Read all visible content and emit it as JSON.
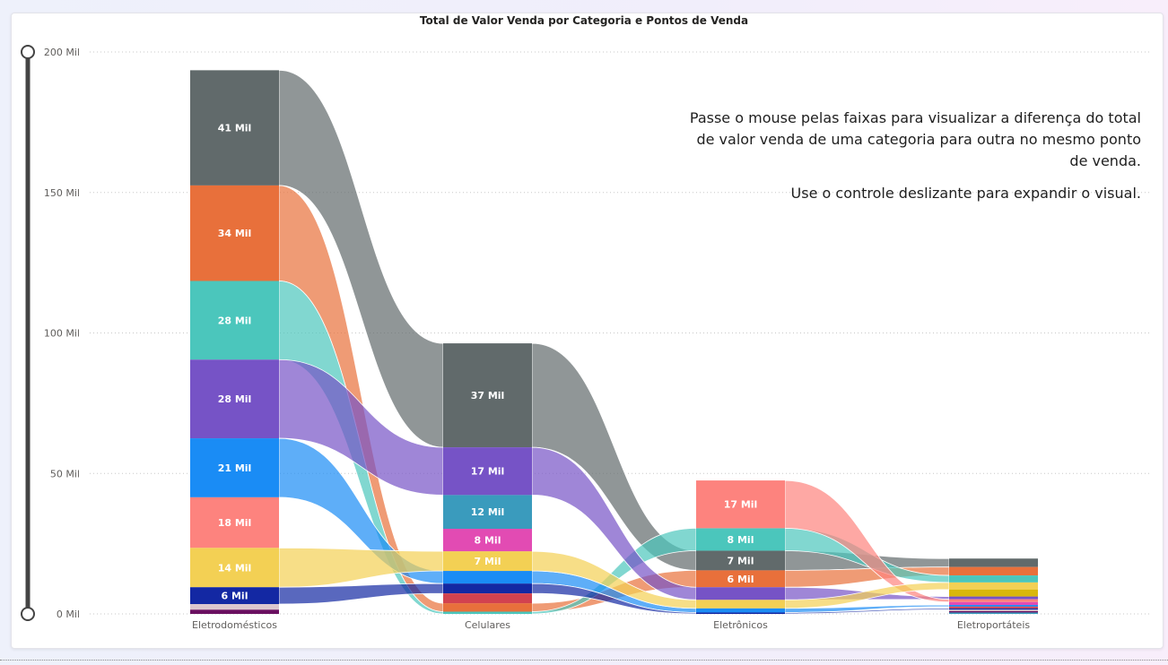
{
  "chart_data": {
    "type": "ribbon",
    "title": "Total de Valor Venda por Categoria e Pontos de Venda",
    "xlabel": "",
    "ylabel": "",
    "ylim": [
      0,
      200
    ],
    "y_ticks": [
      "0 Mil",
      "50 Mil",
      "100 Mil",
      "150 Mil",
      "200 Mil"
    ],
    "grid": true,
    "legend": "none",
    "categories": [
      "Eletrodomésticos",
      "Celulares",
      "Eletrônicos",
      "Eletroportáteis"
    ],
    "series": [
      {
        "color": "#616a6b",
        "values": [
          41,
          37,
          7,
          3
        ]
      },
      {
        "color": "#e8703b",
        "values": [
          34,
          3,
          6,
          3
        ]
      },
      {
        "color": "#4bc6bc",
        "values": [
          28,
          0.8,
          8,
          2.5
        ]
      },
      {
        "color": "#7653c6",
        "values": [
          28,
          17,
          4.5,
          1
        ]
      },
      {
        "color": "#1a8cf5",
        "values": [
          21,
          4.5,
          1.5,
          0.6
        ]
      },
      {
        "color": "#fd837e",
        "values": [
          18,
          0,
          17,
          1
        ]
      },
      {
        "color": "#f3d054",
        "values": [
          14,
          7,
          3,
          2.5
        ]
      },
      {
        "color": "#1328a3",
        "values": [
          6,
          3.5,
          0.5,
          0.5
        ]
      },
      {
        "color": "#dcc7cf",
        "values": [
          2,
          0,
          0,
          0.5
        ]
      },
      {
        "color": "#6a0f60",
        "values": [
          1.5,
          0,
          0,
          0.5
        ]
      },
      {
        "color": "#3a9bbd",
        "values": [
          0,
          12,
          0,
          0.5
        ]
      },
      {
        "color": "#e24bb3",
        "values": [
          0,
          8,
          0,
          1
        ]
      },
      {
        "color": "#d2424f",
        "values": [
          0,
          3.5,
          0,
          0.6
        ]
      },
      {
        "color": "#d9b70b",
        "values": [
          0,
          0,
          0,
          2.5
        ]
      }
    ],
    "data_labels": [
      [
        "41 Mil",
        "37 Mil",
        "7 Mil",
        ""
      ],
      [
        "34 Mil",
        "",
        "6 Mil",
        ""
      ],
      [
        "28 Mil",
        "",
        "8 Mil",
        ""
      ],
      [
        "28 Mil",
        "17 Mil",
        "",
        ""
      ],
      [
        "21 Mil",
        "",
        "",
        ""
      ],
      [
        "18 Mil",
        "",
        "17 Mil",
        ""
      ],
      [
        "14 Mil",
        "7 Mil",
        "",
        ""
      ],
      [
        "6 Mil",
        "",
        "",
        ""
      ],
      [
        "",
        "",
        "",
        ""
      ],
      [
        "",
        "",
        "",
        ""
      ],
      [
        "",
        "12 Mil",
        "",
        ""
      ],
      [
        "",
        "8 Mil",
        "",
        ""
      ],
      [
        "",
        "",
        "",
        ""
      ],
      [
        "",
        "",
        "",
        ""
      ]
    ]
  },
  "note": {
    "line1": "Passe o mouse pelas faixas para visualizar a diferença do total de valor venda de uma categoria para outra no mesmo ponto de venda.",
    "line2": "Use o controle deslizante para expandir o visual."
  }
}
